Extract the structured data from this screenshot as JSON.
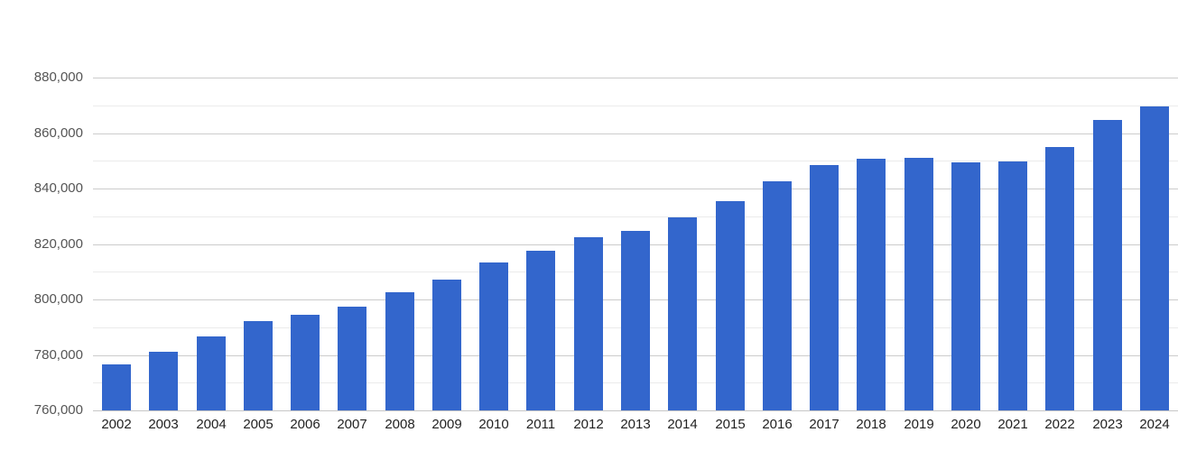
{
  "chart_data": {
    "type": "bar",
    "title": "",
    "xlabel": "",
    "ylabel": "",
    "legend": "none",
    "grid": true,
    "categories": [
      "2002",
      "2003",
      "2004",
      "2005",
      "2006",
      "2007",
      "2008",
      "2009",
      "2010",
      "2011",
      "2012",
      "2013",
      "2014",
      "2015",
      "2016",
      "2017",
      "2018",
      "2019",
      "2020",
      "2021",
      "2022",
      "2023",
      "2024"
    ],
    "values": [
      776500,
      781100,
      786700,
      792100,
      794600,
      797500,
      802700,
      807000,
      813200,
      817700,
      822300,
      824600,
      829700,
      835600,
      842700,
      848400,
      850600,
      851200,
      849300,
      849600,
      855100,
      864700,
      869700
    ],
    "ylim": [
      760000,
      880000
    ],
    "y_major_ticks": [
      760000,
      780000,
      800000,
      820000,
      840000,
      860000,
      880000
    ],
    "y_major_tick_labels": [
      "760,000",
      "780,000",
      "800,000",
      "820,000",
      "840,000",
      "860,000",
      "880,000"
    ],
    "y_minor_ticks": [
      770000,
      790000,
      810000,
      830000,
      850000,
      870000
    ],
    "colors": {
      "bar": "#3366cc",
      "major_gridline": "#cccccc",
      "minor_gridline": "#ebebeb",
      "baseline": "#c6c6c6",
      "y_label_text": "#555555",
      "x_label_text": "#222222",
      "background": "#ffffff"
    }
  }
}
